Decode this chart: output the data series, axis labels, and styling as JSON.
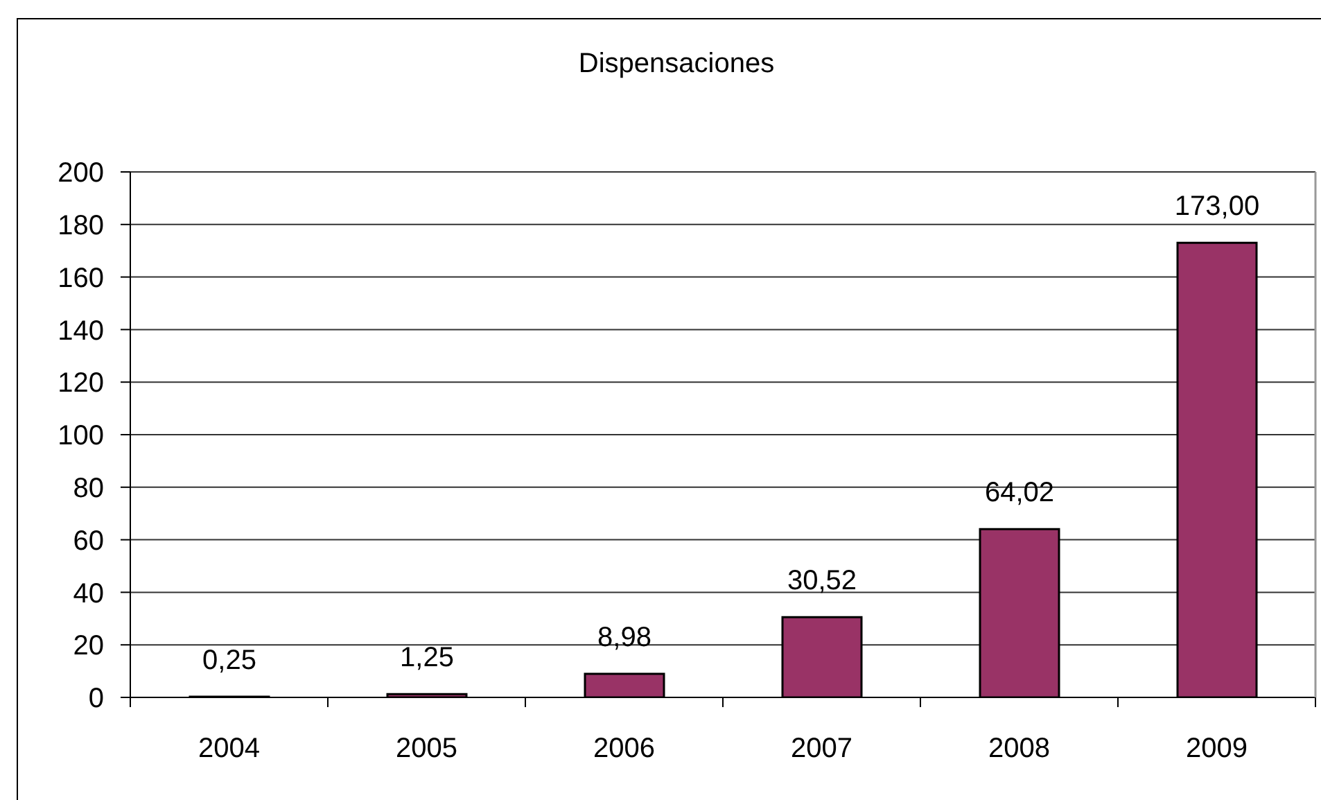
{
  "chart_data": {
    "type": "bar",
    "title": "Dispensaciones",
    "categories": [
      "2004",
      "2005",
      "2006",
      "2007",
      "2008",
      "2009"
    ],
    "values": [
      0.25,
      1.25,
      8.98,
      30.52,
      64.02,
      173.0
    ],
    "value_labels": [
      "0,25",
      "1,25",
      "8,98",
      "30,52",
      "64,02",
      "173,00"
    ],
    "color": "#993366",
    "ylim": [
      0,
      200
    ],
    "yticks": [
      0,
      20,
      40,
      60,
      80,
      100,
      120,
      140,
      160,
      180,
      200
    ],
    "grid": "y"
  }
}
